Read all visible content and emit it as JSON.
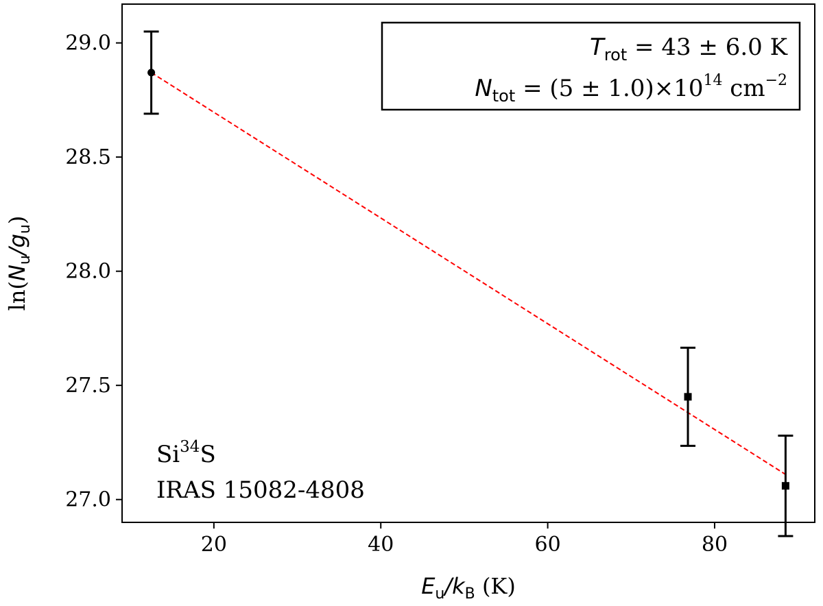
{
  "chart_data": {
    "type": "scatter",
    "xlim": [
      9,
      92
    ],
    "ylim": [
      26.9,
      29.17
    ],
    "x_ticks": [
      20,
      40,
      60,
      80
    ],
    "y_ticks": [
      27.0,
      27.5,
      28.0,
      28.5,
      29.0
    ],
    "x_tick_labels": [
      "20",
      "40",
      "60",
      "80"
    ],
    "y_tick_labels": [
      "27.0",
      "27.5",
      "28.0",
      "28.5",
      "29.0"
    ],
    "xlabel": {
      "main": "E",
      "sub": "u",
      "sep": "/",
      "main2": "k",
      "sub2": "B",
      "unit": " (K)"
    },
    "ylabel": {
      "prefix": "ln(",
      "main": "N",
      "sub": "u",
      "sep": "/",
      "main2": "g",
      "sub2": "u",
      "suffix": ")"
    },
    "grid": false,
    "points": [
      {
        "x": 12.5,
        "y": 28.87,
        "err": 0.18,
        "marker": "circle"
      },
      {
        "x": 76.8,
        "y": 27.45,
        "err": 0.215,
        "marker": "square"
      },
      {
        "x": 88.5,
        "y": 27.06,
        "err": 0.22,
        "marker": "square"
      }
    ],
    "fit_line": {
      "x": [
        12.5,
        88.5
      ],
      "y": [
        28.87,
        27.11
      ],
      "color": "#ff0000",
      "style": "dashed"
    },
    "annotation_box": {
      "placement": "top-right",
      "line1": {
        "sym": "T",
        "sub": "rot",
        "text": " = 43 ± 6.0 K"
      },
      "line2": {
        "sym": "N",
        "sub": "tot",
        "text": " = (5 ± 1.0)×10",
        "sup": "14",
        "unit": " cm",
        "unit_sup": "−2"
      }
    },
    "text_label": {
      "placement": "bottom-left",
      "line1": {
        "a": "Si",
        "sup": "34",
        "b": "S"
      },
      "line2": "IRAS 15082-4808"
    }
  }
}
